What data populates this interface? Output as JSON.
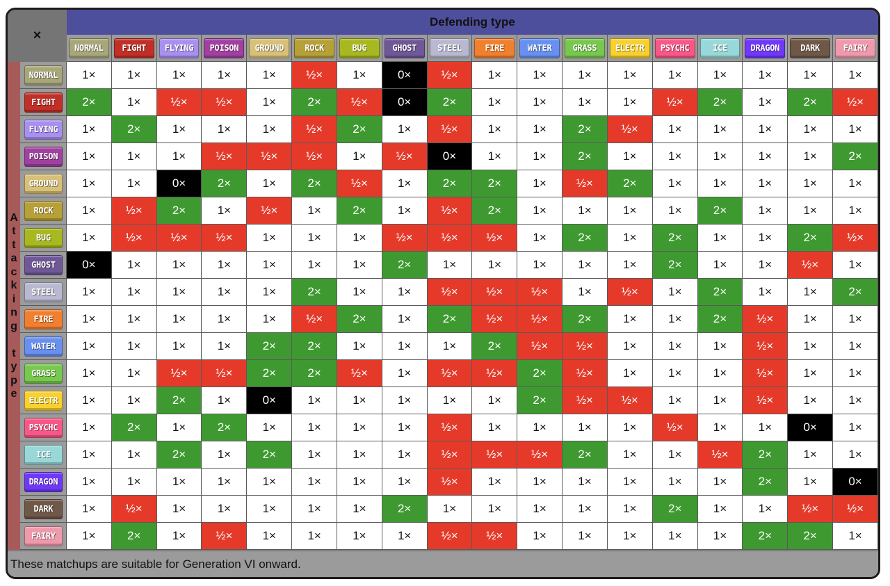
{
  "corner_label": "×",
  "defending_label": "Defending type",
  "attacking_label": "Attacking type",
  "footer_note": "These matchups are suitable for Generation VI onward.",
  "colors": {
    "super_effective": "#3e9a30",
    "not_very_effective": "#e53a2a",
    "no_effect": "#000000",
    "normal_effect": "#ffffff",
    "defending_header": "#4e4f9c",
    "attacking_header": "#a75a5a"
  },
  "types": [
    {
      "label": "NORMAL",
      "color": "#a8a77a"
    },
    {
      "label": "FIGHT",
      "color": "#c03028"
    },
    {
      "label": "FLYING",
      "color": "#a890f0"
    },
    {
      "label": "POISON",
      "color": "#a040a0"
    },
    {
      "label": "GROUND",
      "color": "#d8c078"
    },
    {
      "label": "ROCK",
      "color": "#b8a038"
    },
    {
      "label": "BUG",
      "color": "#a8b820"
    },
    {
      "label": "GHOST",
      "color": "#705898"
    },
    {
      "label": "STEEL",
      "color": "#b8b8d0"
    },
    {
      "label": "FIRE",
      "color": "#f08030"
    },
    {
      "label": "WATER",
      "color": "#6890f0"
    },
    {
      "label": "GRASS",
      "color": "#78c850"
    },
    {
      "label": "ELECTR",
      "color": "#f8d030"
    },
    {
      "label": "PSYCHC",
      "color": "#f85888"
    },
    {
      "label": "ICE",
      "color": "#98d8d8"
    },
    {
      "label": "DRAGON",
      "color": "#7038f8"
    },
    {
      "label": "DARK",
      "color": "#705848"
    },
    {
      "label": "FAIRY",
      "color": "#ee99ac"
    }
  ],
  "matrix": [
    [
      "1×",
      "1×",
      "1×",
      "1×",
      "1×",
      "½×",
      "1×",
      "0×",
      "½×",
      "1×",
      "1×",
      "1×",
      "1×",
      "1×",
      "1×",
      "1×",
      "1×",
      "1×"
    ],
    [
      "2×",
      "1×",
      "½×",
      "½×",
      "1×",
      "2×",
      "½×",
      "0×",
      "2×",
      "1×",
      "1×",
      "1×",
      "1×",
      "½×",
      "2×",
      "1×",
      "2×",
      "½×"
    ],
    [
      "1×",
      "2×",
      "1×",
      "1×",
      "1×",
      "½×",
      "2×",
      "1×",
      "½×",
      "1×",
      "1×",
      "2×",
      "½×",
      "1×",
      "1×",
      "1×",
      "1×",
      "1×"
    ],
    [
      "1×",
      "1×",
      "1×",
      "½×",
      "½×",
      "½×",
      "1×",
      "½×",
      "0×",
      "1×",
      "1×",
      "2×",
      "1×",
      "1×",
      "1×",
      "1×",
      "1×",
      "2×"
    ],
    [
      "1×",
      "1×",
      "0×",
      "2×",
      "1×",
      "2×",
      "½×",
      "1×",
      "2×",
      "2×",
      "1×",
      "½×",
      "2×",
      "1×",
      "1×",
      "1×",
      "1×",
      "1×"
    ],
    [
      "1×",
      "½×",
      "2×",
      "1×",
      "½×",
      "1×",
      "2×",
      "1×",
      "½×",
      "2×",
      "1×",
      "1×",
      "1×",
      "1×",
      "2×",
      "1×",
      "1×",
      "1×"
    ],
    [
      "1×",
      "½×",
      "½×",
      "½×",
      "1×",
      "1×",
      "1×",
      "½×",
      "½×",
      "½×",
      "1×",
      "2×",
      "1×",
      "2×",
      "1×",
      "1×",
      "2×",
      "½×"
    ],
    [
      "0×",
      "1×",
      "1×",
      "1×",
      "1×",
      "1×",
      "1×",
      "2×",
      "1×",
      "1×",
      "1×",
      "1×",
      "1×",
      "2×",
      "1×",
      "1×",
      "½×",
      "1×"
    ],
    [
      "1×",
      "1×",
      "1×",
      "1×",
      "1×",
      "2×",
      "1×",
      "1×",
      "½×",
      "½×",
      "½×",
      "1×",
      "½×",
      "1×",
      "2×",
      "1×",
      "1×",
      "2×"
    ],
    [
      "1×",
      "1×",
      "1×",
      "1×",
      "1×",
      "½×",
      "2×",
      "1×",
      "2×",
      "½×",
      "½×",
      "2×",
      "1×",
      "1×",
      "2×",
      "½×",
      "1×",
      "1×"
    ],
    [
      "1×",
      "1×",
      "1×",
      "1×",
      "2×",
      "2×",
      "1×",
      "1×",
      "1×",
      "2×",
      "½×",
      "½×",
      "1×",
      "1×",
      "1×",
      "½×",
      "1×",
      "1×"
    ],
    [
      "1×",
      "1×",
      "½×",
      "½×",
      "2×",
      "2×",
      "½×",
      "1×",
      "½×",
      "½×",
      "2×",
      "½×",
      "1×",
      "1×",
      "1×",
      "½×",
      "1×",
      "1×"
    ],
    [
      "1×",
      "1×",
      "2×",
      "1×",
      "0×",
      "1×",
      "1×",
      "1×",
      "1×",
      "1×",
      "2×",
      "½×",
      "½×",
      "1×",
      "1×",
      "½×",
      "1×",
      "1×"
    ],
    [
      "1×",
      "2×",
      "1×",
      "2×",
      "1×",
      "1×",
      "1×",
      "1×",
      "½×",
      "1×",
      "1×",
      "1×",
      "1×",
      "½×",
      "1×",
      "1×",
      "0×",
      "1×"
    ],
    [
      "1×",
      "1×",
      "2×",
      "1×",
      "2×",
      "1×",
      "1×",
      "1×",
      "½×",
      "½×",
      "½×",
      "2×",
      "1×",
      "1×",
      "½×",
      "2×",
      "1×",
      "1×"
    ],
    [
      "1×",
      "1×",
      "1×",
      "1×",
      "1×",
      "1×",
      "1×",
      "1×",
      "½×",
      "1×",
      "1×",
      "1×",
      "1×",
      "1×",
      "1×",
      "2×",
      "1×",
      "0×"
    ],
    [
      "1×",
      "½×",
      "1×",
      "1×",
      "1×",
      "1×",
      "1×",
      "2×",
      "1×",
      "1×",
      "1×",
      "1×",
      "1×",
      "2×",
      "1×",
      "1×",
      "½×",
      "½×"
    ],
    [
      "1×",
      "2×",
      "1×",
      "½×",
      "1×",
      "1×",
      "1×",
      "1×",
      "½×",
      "½×",
      "1×",
      "1×",
      "1×",
      "1×",
      "1×",
      "2×",
      "2×",
      "1×"
    ]
  ]
}
